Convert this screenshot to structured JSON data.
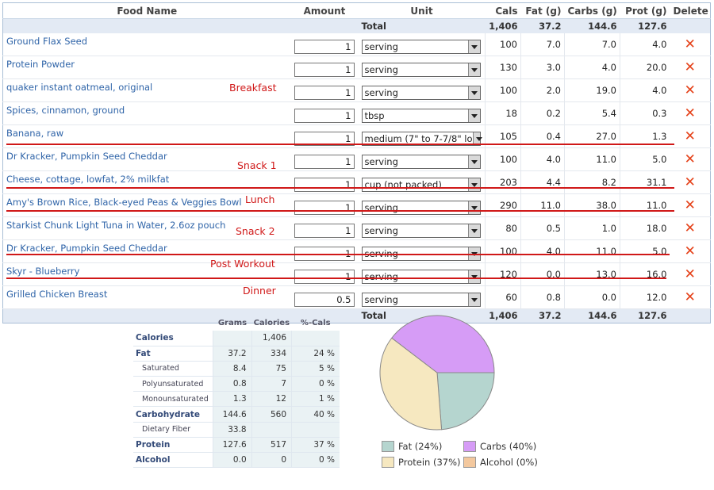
{
  "columns": {
    "food_name": "Food Name",
    "amount": "Amount",
    "unit": "Unit",
    "cals": "Cals",
    "fat": "Fat (g)",
    "carbs": "Carbs (g)",
    "prot": "Prot (g)",
    "delete": "Delete"
  },
  "totals": {
    "label": "Total",
    "cals": "1,406",
    "fat": "37.2",
    "carbs": "144.6",
    "prot": "127.6"
  },
  "foods": [
    {
      "name": "Ground Flax Seed",
      "amount": "1",
      "unit": "serving",
      "cals": "100",
      "fat": "7.0",
      "carbs": "7.0",
      "prot": "4.0"
    },
    {
      "name": "Protein Powder",
      "amount": "1",
      "unit": "serving",
      "cals": "130",
      "fat": "3.0",
      "carbs": "4.0",
      "prot": "20.0"
    },
    {
      "name": "quaker instant oatmeal, original",
      "amount": "1",
      "unit": "serving",
      "cals": "100",
      "fat": "2.0",
      "carbs": "19.0",
      "prot": "4.0"
    },
    {
      "name": "Spices, cinnamon, ground",
      "amount": "1",
      "unit": "tbsp",
      "cals": "18",
      "fat": "0.2",
      "carbs": "5.4",
      "prot": "0.3"
    },
    {
      "name": "Banana, raw",
      "amount": "1",
      "unit": "medium (7\" to 7-7/8\" lo",
      "cals": "105",
      "fat": "0.4",
      "carbs": "27.0",
      "prot": "1.3"
    },
    {
      "name": "Dr Kracker, Pumpkin Seed Cheddar",
      "amount": "1",
      "unit": "serving",
      "cals": "100",
      "fat": "4.0",
      "carbs": "11.0",
      "prot": "5.0"
    },
    {
      "name": "Cheese, cottage, lowfat, 2% milkfat",
      "amount": "1",
      "unit": "cup (not packed)",
      "cals": "203",
      "fat": "4.4",
      "carbs": "8.2",
      "prot": "31.1"
    },
    {
      "name": "Amy's Brown Rice, Black-eyed Peas & Veggies Bowl",
      "amount": "1",
      "unit": "serving",
      "cals": "290",
      "fat": "11.0",
      "carbs": "38.0",
      "prot": "11.0"
    },
    {
      "name": "Starkist Chunk Light Tuna in Water, 2.6oz pouch",
      "amount": "1",
      "unit": "serving",
      "cals": "80",
      "fat": "0.5",
      "carbs": "1.0",
      "prot": "18.0"
    },
    {
      "name": "Dr Kracker, Pumpkin Seed Cheddar",
      "amount": "1",
      "unit": "serving",
      "cals": "100",
      "fat": "4.0",
      "carbs": "11.0",
      "prot": "5.0"
    },
    {
      "name": "Skyr - Blueberry",
      "amount": "1",
      "unit": "serving",
      "cals": "120",
      "fat": "0.0",
      "carbs": "13.0",
      "prot": "16.0"
    },
    {
      "name": "Grilled Chicken Breast",
      "amount": "0.5",
      "unit": "serving",
      "cals": "60",
      "fat": "0.8",
      "carbs": "0.0",
      "prot": "12.0"
    }
  ],
  "meal_labels": {
    "breakfast": "Breakfast",
    "snack1": "Snack 1",
    "lunch": "Lunch",
    "snack2": "Snack 2",
    "post_workout": "Post Workout",
    "dinner": "Dinner"
  },
  "nutrition": {
    "headers": {
      "grams": "Grams",
      "calories": "Calories",
      "pct": "%-Cals"
    },
    "rows": [
      {
        "label": "Calories",
        "grams": "",
        "calories": "1,406",
        "pct": ""
      },
      {
        "label": "Fat",
        "grams": "37.2",
        "calories": "334",
        "pct": "24 %"
      },
      {
        "label": "Saturated",
        "grams": "8.4",
        "calories": "75",
        "pct": "5 %"
      },
      {
        "label": "Polyunsaturated",
        "grams": "0.8",
        "calories": "7",
        "pct": "0 %"
      },
      {
        "label": "Monounsaturated",
        "grams": "1.3",
        "calories": "12",
        "pct": "1 %"
      },
      {
        "label": "Carbohydrate",
        "grams": "144.6",
        "calories": "560",
        "pct": "40 %"
      },
      {
        "label": "Dietary Fiber",
        "grams": "33.8",
        "calories": "",
        "pct": ""
      },
      {
        "label": "Protein",
        "grams": "127.6",
        "calories": "517",
        "pct": "37 %"
      },
      {
        "label": "Alcohol",
        "grams": "0.0",
        "calories": "0",
        "pct": "0 %"
      }
    ]
  },
  "chart_data": {
    "type": "pie",
    "categories": [
      "Fat",
      "Carbs",
      "Protein",
      "Alcohol"
    ],
    "values": [
      24,
      40,
      37,
      0
    ],
    "colors": [
      "#b5d5cf",
      "#d69cf6",
      "#f6e8c0",
      "#f3c89e"
    ],
    "legend": [
      "Fat (24%)",
      "Carbs (40%)",
      "Protein (37%)",
      "Alcohol (0%)"
    ]
  },
  "icons": {
    "delete": "x-delete-icon",
    "dropdown": "chevron-down-icon"
  },
  "colors": {
    "link": "#2f64a8",
    "meal_label": "#d01818",
    "delete": "#e5421a",
    "total_row": "#e3eaf4"
  }
}
